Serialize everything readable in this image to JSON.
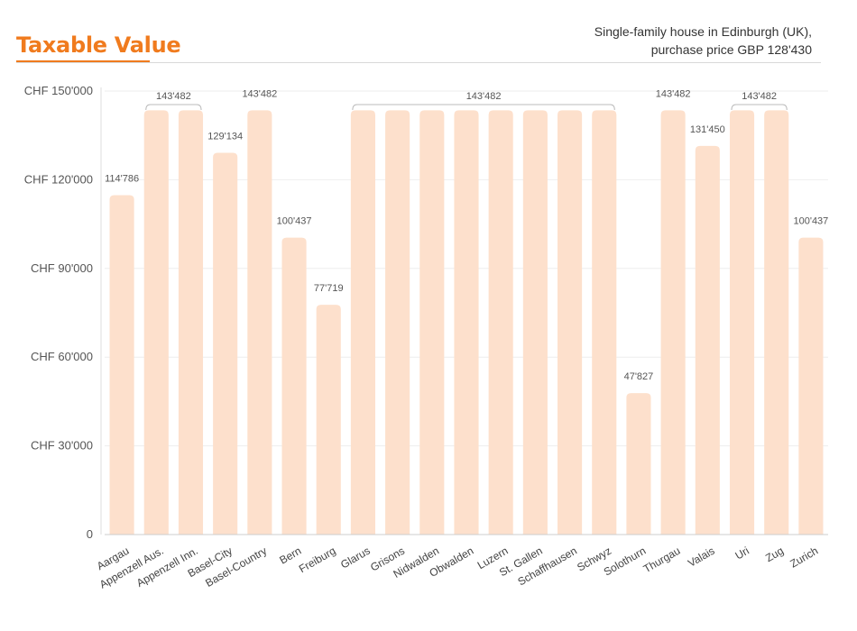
{
  "header": {
    "title": "Taxable Value",
    "subtitle_line1": "Single-family house in Edinburgh (UK),",
    "subtitle_line2": "purchase price GBP 128'430"
  },
  "colors": {
    "accent": "#f07b1e",
    "bar": "#fde0cc",
    "grid": "#eeeeee",
    "bracket": "#bbbbbb"
  },
  "chart_data": {
    "type": "bar",
    "title": "Taxable Value",
    "xlabel": "",
    "ylabel": "",
    "ylim": [
      0,
      150000
    ],
    "yticks": [
      {
        "value": 0,
        "label": "0"
      },
      {
        "value": 30000,
        "label": "CHF 30'000"
      },
      {
        "value": 60000,
        "label": "CHF 60'000"
      },
      {
        "value": 90000,
        "label": "CHF 90'000"
      },
      {
        "value": 120000,
        "label": "CHF 120'000"
      },
      {
        "value": 150000,
        "label": "CHF 150'000"
      }
    ],
    "categories": [
      "Aargau",
      "Appenzell Aus.",
      "Appenzell Inn.",
      "Basel-City",
      "Basel-Country",
      "Bern",
      "Freiburg",
      "Glarus",
      "Grisons",
      "Nidwalden",
      "Obwalden",
      "Luzern",
      "St. Gallen",
      "Schaffhausen",
      "Schwyz",
      "Solothurn",
      "Thurgau",
      "Valais",
      "Uri",
      "Zug",
      "Zurich"
    ],
    "values": [
      114786,
      143482,
      143482,
      129134,
      143482,
      100437,
      77719,
      143482,
      143482,
      143482,
      143482,
      143482,
      143482,
      143482,
      143482,
      47827,
      143482,
      131450,
      143482,
      143482,
      100437
    ],
    "annotations": [
      {
        "from": 0,
        "to": 0,
        "text": "114'786"
      },
      {
        "from": 1,
        "to": 2,
        "text": "143'482"
      },
      {
        "from": 3,
        "to": 3,
        "text": "129'134"
      },
      {
        "from": 4,
        "to": 4,
        "text": "143'482"
      },
      {
        "from": 5,
        "to": 5,
        "text": "100'437"
      },
      {
        "from": 6,
        "to": 6,
        "text": "77'719"
      },
      {
        "from": 7,
        "to": 14,
        "text": "143'482"
      },
      {
        "from": 15,
        "to": 15,
        "text": "47'827"
      },
      {
        "from": 16,
        "to": 16,
        "text": "143'482"
      },
      {
        "from": 17,
        "to": 17,
        "text": "131'450"
      },
      {
        "from": 18,
        "to": 19,
        "text": "143'482"
      },
      {
        "from": 20,
        "to": 20,
        "text": "100'437"
      }
    ]
  }
}
